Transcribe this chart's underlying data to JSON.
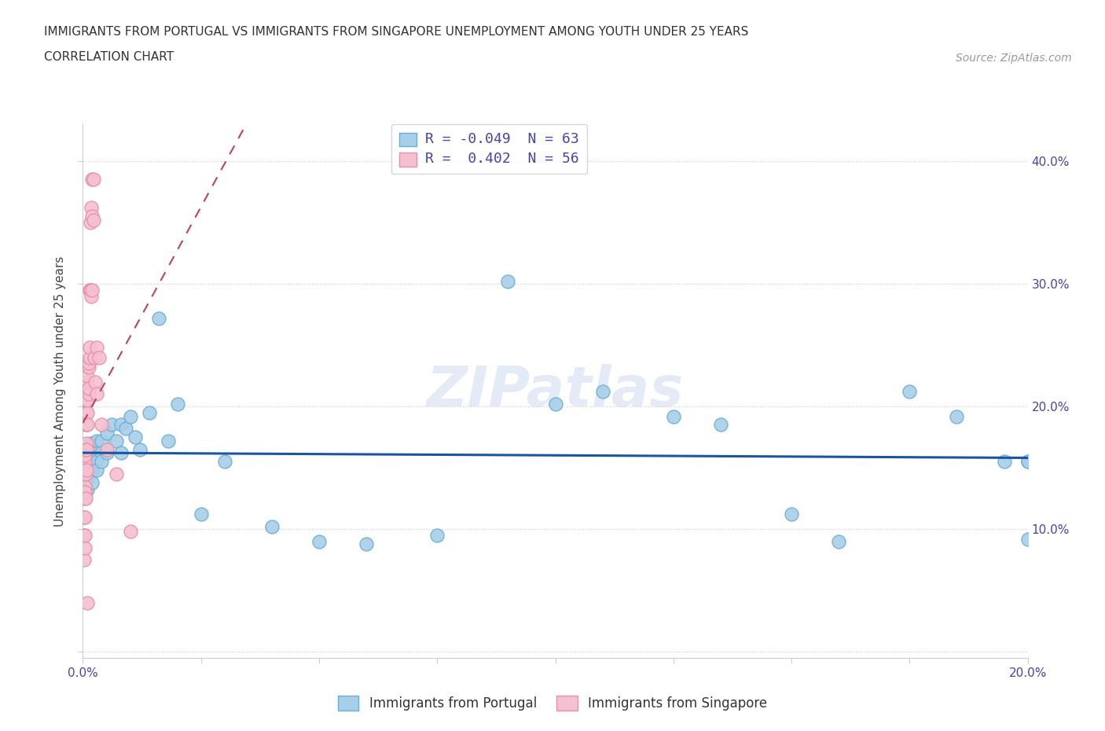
{
  "title_line1": "IMMIGRANTS FROM PORTUGAL VS IMMIGRANTS FROM SINGAPORE UNEMPLOYMENT AMONG YOUTH UNDER 25 YEARS",
  "title_line2": "CORRELATION CHART",
  "source_text": "Source: ZipAtlas.com",
  "ylabel": "Unemployment Among Youth under 25 years",
  "xlim": [
    0.0,
    0.2
  ],
  "ylim": [
    -0.005,
    0.43
  ],
  "xticks": [
    0.0,
    0.025,
    0.05,
    0.075,
    0.1,
    0.125,
    0.15,
    0.175,
    0.2
  ],
  "xtick_labels_show": [
    "0.0%",
    "",
    "",
    "",
    "",
    "",
    "",
    "",
    "20.0%"
  ],
  "yticks": [
    0.0,
    0.1,
    0.2,
    0.3,
    0.4
  ],
  "ytick_labels_right": [
    "",
    "10.0%",
    "20.0%",
    "30.0%",
    "40.0%"
  ],
  "watermark": "ZIPatlas",
  "portugal_color": "#a8cfe8",
  "portugal_edge": "#6aaed6",
  "singapore_color": "#f5c0d0",
  "singapore_edge": "#e890a8",
  "portugal_trend_color": "#1a55a0",
  "singapore_trend_color": "#c04060",
  "legend_label_portugal": "R = -0.049  N = 63",
  "legend_label_singapore": "R =  0.402  N = 56",
  "portugal_points_x": [
    0.0003,
    0.0003,
    0.0006,
    0.0006,
    0.0008,
    0.0008,
    0.001,
    0.001,
    0.001,
    0.001,
    0.001,
    0.0012,
    0.0012,
    0.0014,
    0.0014,
    0.0016,
    0.0016,
    0.0016,
    0.0018,
    0.002,
    0.002,
    0.002,
    0.002,
    0.003,
    0.003,
    0.003,
    0.003,
    0.004,
    0.004,
    0.004,
    0.005,
    0.005,
    0.006,
    0.007,
    0.008,
    0.008,
    0.009,
    0.01,
    0.011,
    0.012,
    0.014,
    0.016,
    0.018,
    0.02,
    0.025,
    0.03,
    0.04,
    0.05,
    0.06,
    0.075,
    0.09,
    0.1,
    0.11,
    0.125,
    0.135,
    0.15,
    0.16,
    0.175,
    0.185,
    0.195,
    0.2,
    0.2,
    0.2
  ],
  "portugal_points_y": [
    0.162,
    0.145,
    0.158,
    0.148,
    0.162,
    0.142,
    0.165,
    0.155,
    0.148,
    0.14,
    0.132,
    0.165,
    0.155,
    0.165,
    0.148,
    0.17,
    0.162,
    0.148,
    0.168,
    0.165,
    0.155,
    0.148,
    0.138,
    0.172,
    0.162,
    0.155,
    0.148,
    0.172,
    0.162,
    0.155,
    0.178,
    0.162,
    0.185,
    0.172,
    0.185,
    0.162,
    0.182,
    0.192,
    0.175,
    0.165,
    0.195,
    0.272,
    0.172,
    0.202,
    0.112,
    0.155,
    0.102,
    0.09,
    0.088,
    0.095,
    0.302,
    0.202,
    0.212,
    0.192,
    0.185,
    0.112,
    0.09,
    0.212,
    0.192,
    0.155,
    0.155,
    0.092,
    0.155
  ],
  "singapore_points_x": [
    0.0002,
    0.0002,
    0.0002,
    0.0002,
    0.0003,
    0.0003,
    0.0003,
    0.0004,
    0.0004,
    0.0004,
    0.0004,
    0.0005,
    0.0005,
    0.0005,
    0.0005,
    0.0006,
    0.0006,
    0.0006,
    0.0006,
    0.0007,
    0.0007,
    0.0007,
    0.0008,
    0.0008,
    0.0008,
    0.0009,
    0.0009,
    0.001,
    0.001,
    0.001,
    0.001,
    0.0012,
    0.0012,
    0.0013,
    0.0013,
    0.0014,
    0.0015,
    0.0015,
    0.0016,
    0.0016,
    0.0017,
    0.0018,
    0.002,
    0.002,
    0.002,
    0.0022,
    0.0022,
    0.0024,
    0.0026,
    0.003,
    0.003,
    0.0035,
    0.004,
    0.005,
    0.007,
    0.01
  ],
  "singapore_points_y": [
    0.13,
    0.11,
    0.095,
    0.075,
    0.145,
    0.125,
    0.095,
    0.155,
    0.135,
    0.11,
    0.085,
    0.16,
    0.145,
    0.13,
    0.095,
    0.185,
    0.165,
    0.145,
    0.125,
    0.195,
    0.17,
    0.148,
    0.205,
    0.185,
    0.165,
    0.22,
    0.195,
    0.225,
    0.205,
    0.185,
    0.04,
    0.232,
    0.21,
    0.235,
    0.215,
    0.24,
    0.295,
    0.248,
    0.35,
    0.295,
    0.362,
    0.29,
    0.385,
    0.355,
    0.295,
    0.385,
    0.352,
    0.24,
    0.22,
    0.248,
    0.21,
    0.24,
    0.185,
    0.165,
    0.145,
    0.098
  ]
}
